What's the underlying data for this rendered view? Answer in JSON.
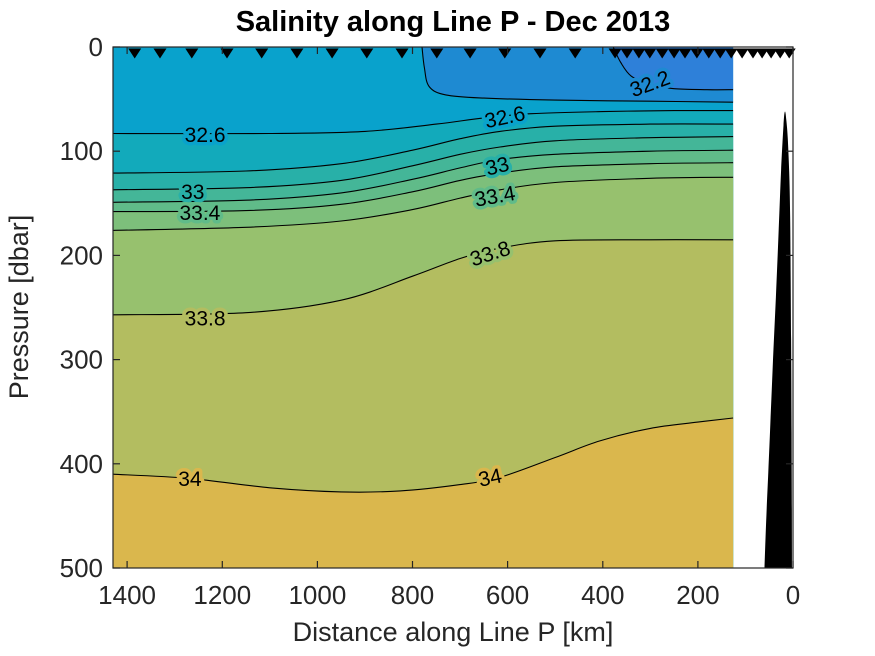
{
  "title": "Salinity along Line P - Dec 2013",
  "xlabel": "Distance along Line P [km]",
  "ylabel": "Pressure [dbar]",
  "chart_data": {
    "type": "filled_contour",
    "title": "Salinity along Line P - Dec 2013",
    "xlabel": "Distance along Line P [km]",
    "ylabel": "Pressure [dbar]",
    "x_axis": {
      "label": "Distance along Line P [km]",
      "unit": "km",
      "ticks": [
        1400,
        1200,
        1000,
        800,
        600,
        400,
        200,
        0
      ],
      "range": [
        1430,
        0
      ],
      "reversed": true
    },
    "y_axis": {
      "label": "Pressure [dbar]",
      "unit": "dbar",
      "ticks": [
        0,
        100,
        200,
        300,
        400,
        500
      ],
      "range": [
        0,
        500
      ],
      "increases_downward": true
    },
    "contour_interval": 0.2,
    "levels": [
      32.2,
      32.4,
      32.6,
      32.8,
      33,
      33.2,
      33.4,
      33.6,
      33.8,
      34
    ],
    "labeled_levels": [
      32.2,
      32.6,
      33,
      33.4,
      33.8,
      34
    ],
    "fill_extent_km": [
      126,
      1430
    ],
    "base_fill": "#09a2cc",
    "band_colors": [
      {
        "range": "< 32.2",
        "color": "#2e80d9"
      },
      {
        "range": "32.2 - 32.4",
        "color": "#1e8ad2"
      },
      {
        "range": "32.4 - 32.6",
        "color": "#09a2cc"
      },
      {
        "range": "32.6 - 32.8",
        "color": "#12aabb"
      },
      {
        "range": "32.8 - 33.0",
        "color": "#28b0a8"
      },
      {
        "range": "33.0 - 33.2",
        "color": "#44b698"
      },
      {
        "range": "33.2 - 33.4",
        "color": "#60bb89"
      },
      {
        "range": "33.4 - 33.6",
        "color": "#7dbf7b"
      },
      {
        "range": "33.6 - 33.8",
        "color": "#97c16e"
      },
      {
        "range": "33.8 - 34.0",
        "color": "#b3bd60"
      },
      {
        "range": "> 34.0",
        "color": "#dab74d"
      }
    ],
    "contours": [
      {
        "level": 32.2,
        "side": "top",
        "fill": "#2e80d9",
        "points": [
          [
            378,
            0
          ],
          [
            362,
            15
          ],
          [
            340,
            28
          ],
          [
            300,
            36
          ],
          [
            250,
            40
          ],
          [
            180,
            41
          ],
          [
            126,
            41
          ]
        ]
      },
      {
        "level": 32.4,
        "side": "top",
        "fill": "#1e8ad2",
        "points": [
          [
            780,
            0
          ],
          [
            775,
            20
          ],
          [
            765,
            38
          ],
          [
            730,
            46
          ],
          [
            650,
            49
          ],
          [
            500,
            51
          ],
          [
            300,
            52
          ],
          [
            126,
            53
          ]
        ]
      },
      {
        "level": 32.6,
        "side": "bottom",
        "fill": "#12aabb",
        "points": [
          [
            1430,
            83
          ],
          [
            1100,
            83
          ],
          [
            900,
            81
          ],
          [
            750,
            74
          ],
          [
            650,
            68
          ],
          [
            550,
            64
          ],
          [
            400,
            62
          ],
          [
            250,
            61
          ],
          [
            126,
            61
          ]
        ]
      },
      {
        "level": 32.8,
        "side": "bottom",
        "fill": "#28b0a8",
        "points": [
          [
            1430,
            121
          ],
          [
            1150,
            119
          ],
          [
            950,
            112
          ],
          [
            800,
            99
          ],
          [
            700,
            88
          ],
          [
            616,
            81
          ],
          [
            500,
            76
          ],
          [
            300,
            74
          ],
          [
            126,
            74
          ]
        ]
      },
      {
        "level": 33,
        "side": "bottom",
        "fill": "#44b698",
        "points": [
          [
            1430,
            137
          ],
          [
            1150,
            135
          ],
          [
            950,
            128
          ],
          [
            800,
            114
          ],
          [
            700,
            103
          ],
          [
            616,
            96
          ],
          [
            500,
            90
          ],
          [
            300,
            87
          ],
          [
            126,
            86
          ]
        ]
      },
      {
        "level": 33.2,
        "side": "bottom",
        "fill": "#60bb89",
        "points": [
          [
            1430,
            149
          ],
          [
            1150,
            147
          ],
          [
            950,
            140
          ],
          [
            800,
            127
          ],
          [
            700,
            116
          ],
          [
            616,
            108
          ],
          [
            500,
            103
          ],
          [
            300,
            100
          ],
          [
            126,
            99
          ]
        ]
      },
      {
        "level": 33.4,
        "side": "bottom",
        "fill": "#7dbf7b",
        "points": [
          [
            1430,
            158
          ],
          [
            1150,
            157
          ],
          [
            950,
            151
          ],
          [
            800,
            139
          ],
          [
            700,
            128
          ],
          [
            616,
            121
          ],
          [
            500,
            115
          ],
          [
            300,
            112
          ],
          [
            126,
            111
          ]
        ]
      },
      {
        "level": 33.6,
        "side": "bottom",
        "fill": "#97c16e",
        "points": [
          [
            1430,
            176
          ],
          [
            1150,
            173
          ],
          [
            950,
            167
          ],
          [
            800,
            156
          ],
          [
            700,
            145
          ],
          [
            616,
            137
          ],
          [
            500,
            130
          ],
          [
            300,
            126
          ],
          [
            126,
            125
          ]
        ]
      },
      {
        "level": 33.8,
        "side": "bottom",
        "fill": "#b3bd60",
        "points": [
          [
            1430,
            257
          ],
          [
            1150,
            255
          ],
          [
            950,
            243
          ],
          [
            800,
            220
          ],
          [
            700,
            203
          ],
          [
            616,
            193
          ],
          [
            500,
            186
          ],
          [
            300,
            185
          ],
          [
            126,
            185
          ]
        ]
      },
      {
        "level": 34,
        "side": "bottom",
        "fill": "#dab74d",
        "points": [
          [
            1430,
            410
          ],
          [
            1270,
            414
          ],
          [
            1100,
            423
          ],
          [
            950,
            427
          ],
          [
            826,
            426
          ],
          [
            700,
            420
          ],
          [
            616,
            413
          ],
          [
            500,
            394
          ],
          [
            406,
            378
          ],
          [
            300,
            366
          ],
          [
            200,
            360
          ],
          [
            126,
            356
          ]
        ]
      }
    ],
    "contour_labels": [
      {
        "text": "32.6",
        "km": 1236,
        "dbar": 84,
        "rot": 0,
        "halo": "#09a2cc"
      },
      {
        "text": "32.2",
        "km": 301,
        "dbar": 35,
        "rot": -20,
        "halo": "#1e8ad2"
      },
      {
        "text": "32.6",
        "km": 606,
        "dbar": 67,
        "rot": -12,
        "halo": "#09a2cc"
      },
      {
        "text": "33",
        "km": 1262,
        "dbar": 139,
        "rot": 0,
        "halo": "#28b0a8"
      },
      {
        "text": "33",
        "km": 622,
        "dbar": 114,
        "rot": -14,
        "halo": "#28b0a8"
      },
      {
        "text": "33.4",
        "km": 1247,
        "dbar": 159,
        "rot": 0,
        "halo": "#60bb89"
      },
      {
        "text": "33.4",
        "km": 627,
        "dbar": 143,
        "rot": -10,
        "halo": "#60bb89"
      },
      {
        "text": "33.8",
        "km": 1236,
        "dbar": 260,
        "rot": 0,
        "halo": "#b3bd60"
      },
      {
        "text": "33.8",
        "km": 637,
        "dbar": 198,
        "rot": -18,
        "halo": "#97c16e"
      },
      {
        "text": "34",
        "km": 1268,
        "dbar": 414,
        "rot": 0,
        "halo": "#dab74d"
      },
      {
        "text": "34",
        "km": 637,
        "dbar": 413,
        "rot": -12,
        "halo": "#dab74d"
      }
    ],
    "station_km": [
      1384,
      1331,
      1264,
      1190,
      1117,
      1043,
      969,
      896,
      822,
      749,
      679,
      606,
      532,
      458,
      374,
      349,
      324,
      301,
      275,
      250,
      227,
      202,
      177,
      153,
      130,
      107,
      84,
      65,
      46,
      27,
      8
    ],
    "station_marker": "filled black downward triangle",
    "land_mask": {
      "color": "#000000",
      "points": [
        [
          60,
          500
        ],
        [
          56,
          450
        ],
        [
          52,
          408
        ],
        [
          47,
          355
        ],
        [
          42,
          300
        ],
        [
          36,
          240
        ],
        [
          30,
          175
        ],
        [
          25,
          118
        ],
        [
          20,
          75
        ],
        [
          17,
          62
        ],
        [
          14,
          70
        ],
        [
          11,
          88
        ],
        [
          8,
          120
        ],
        [
          6,
          160
        ],
        [
          5,
          215
        ],
        [
          4,
          280
        ],
        [
          3,
          370
        ],
        [
          2,
          500
        ]
      ]
    },
    "grid": false,
    "legend": "none",
    "tick_direction": "in",
    "box": true
  }
}
